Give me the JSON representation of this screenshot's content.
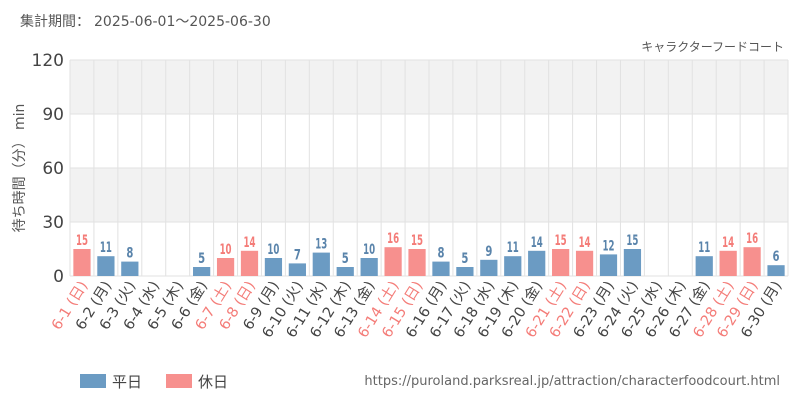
{
  "header": {
    "period_label": "集計期間：",
    "period_value": "2025-06-01～2025-06-30",
    "facility": "キャラクターフードコート"
  },
  "footer": {
    "url": "https://puroland.parksreal.jp/attraction/characterfoodcourt.html"
  },
  "colors": {
    "weekday": "#6b9bc3",
    "holiday": "#f7908e",
    "weekday_label": "#5a84ab",
    "holiday_label": "#f47c78",
    "axis_text": "#444444",
    "band": "#f2f2f2",
    "grid": "#e2e2e2"
  },
  "chart_data": {
    "type": "bar",
    "ylabel": "待ち時間（分） min",
    "ylim": [
      0,
      120
    ],
    "yticks": [
      0,
      30,
      60,
      90,
      120
    ],
    "legend": [
      {
        "name": "平日",
        "type": "weekday"
      },
      {
        "name": "休日",
        "type": "holiday"
      }
    ],
    "legend_position": "bottom-left",
    "categories": [
      "6-1 (日)",
      "6-2 (月)",
      "6-3 (火)",
      "6-4 (水)",
      "6-5 (木)",
      "6-6 (金)",
      "6-7 (土)",
      "6-8 (日)",
      "6-9 (月)",
      "6-10 (火)",
      "6-11 (水)",
      "6-12 (木)",
      "6-13 (金)",
      "6-14 (土)",
      "6-15 (日)",
      "6-16 (月)",
      "6-17 (火)",
      "6-18 (水)",
      "6-19 (木)",
      "6-20 (金)",
      "6-21 (土)",
      "6-22 (日)",
      "6-23 (月)",
      "6-24 (火)",
      "6-25 (水)",
      "6-26 (木)",
      "6-27 (金)",
      "6-28 (土)",
      "6-29 (日)",
      "6-30 (月)"
    ],
    "values": [
      15,
      11,
      8,
      null,
      null,
      5,
      10,
      14,
      10,
      7,
      13,
      5,
      10,
      16,
      15,
      8,
      5,
      9,
      11,
      14,
      15,
      14,
      12,
      15,
      null,
      null,
      11,
      14,
      16,
      6
    ],
    "day_types": [
      "holiday",
      "weekday",
      "weekday",
      "weekday",
      "weekday",
      "weekday",
      "holiday",
      "holiday",
      "weekday",
      "weekday",
      "weekday",
      "weekday",
      "weekday",
      "holiday",
      "holiday",
      "weekday",
      "weekday",
      "weekday",
      "weekday",
      "weekday",
      "holiday",
      "holiday",
      "weekday",
      "weekday",
      "weekday",
      "weekday",
      "weekday",
      "holiday",
      "holiday",
      "weekday"
    ]
  }
}
